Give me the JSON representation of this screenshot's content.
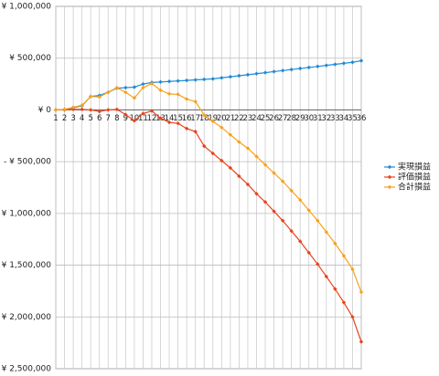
{
  "chart_data": {
    "type": "line",
    "categories": [
      "1",
      "2",
      "3",
      "4",
      "5",
      "6",
      "7",
      "8",
      "9",
      "10",
      "11",
      "12",
      "13",
      "14",
      "15",
      "16",
      "17",
      "18",
      "19",
      "20",
      "21",
      "22",
      "23",
      "24",
      "25",
      "26",
      "27",
      "28",
      "29",
      "30",
      "31",
      "32",
      "33",
      "34",
      "35",
      "36"
    ],
    "series": [
      {
        "name": "実現損益",
        "color": "#1f8ad6",
        "values": [
          0,
          5000,
          20000,
          40000,
          130000,
          140000,
          170000,
          210000,
          215000,
          220000,
          250000,
          265000,
          270000,
          275000,
          280000,
          285000,
          290000,
          295000,
          300000,
          310000,
          320000,
          330000,
          340000,
          350000,
          360000,
          370000,
          380000,
          390000,
          400000,
          410000,
          420000,
          430000,
          440000,
          450000,
          460000,
          475000
        ]
      },
      {
        "name": "評価損益",
        "color": "#e8431c",
        "values": [
          0,
          0,
          5000,
          5000,
          0,
          -15000,
          0,
          5000,
          -45000,
          -105000,
          -35000,
          -10000,
          -80000,
          -120000,
          -130000,
          -180000,
          -210000,
          -350000,
          -420000,
          -490000,
          -560000,
          -640000,
          -720000,
          -810000,
          -890000,
          -980000,
          -1070000,
          -1170000,
          -1270000,
          -1380000,
          -1490000,
          -1610000,
          -1730000,
          -1860000,
          -2000000,
          -2240000
        ]
      },
      {
        "name": "合計損益",
        "color": "#f7a21b",
        "values": [
          0,
          5000,
          25000,
          45000,
          130000,
          125000,
          170000,
          215000,
          170000,
          115000,
          215000,
          255000,
          190000,
          155000,
          150000,
          105000,
          80000,
          -50000,
          -110000,
          -170000,
          -240000,
          -310000,
          -370000,
          -450000,
          -530000,
          -610000,
          -690000,
          -780000,
          -870000,
          -970000,
          -1070000,
          -1180000,
          -1290000,
          -1410000,
          -1540000,
          -1760000
        ]
      }
    ],
    "ylim": [
      -2500000,
      1000000
    ],
    "yticks": [
      {
        "value": -2500000,
        "label": "- ¥ 2,500,000"
      },
      {
        "value": -2000000,
        "label": "- ¥ 2,000,000"
      },
      {
        "value": -1500000,
        "label": "- ¥ 1,500,000"
      },
      {
        "value": -1000000,
        "label": "- ¥ 1,000,000"
      },
      {
        "value": -500000,
        "label": "- ¥ 500,000"
      },
      {
        "value": 0,
        "label": "¥ 0"
      },
      {
        "value": 500000,
        "label": "¥ 500,000"
      },
      {
        "value": 1000000,
        "label": "¥ 1,000,000"
      }
    ],
    "grid": true,
    "legend": "right"
  }
}
